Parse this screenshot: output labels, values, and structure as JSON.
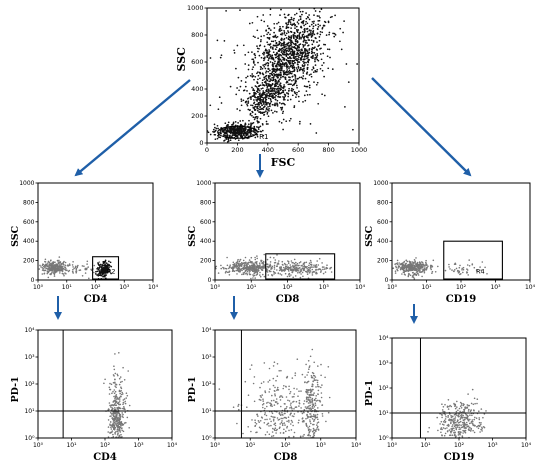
{
  "colors": {
    "arrow": "#1f5fa8",
    "dots_dark": "#111111",
    "dots_gray": "#777777",
    "axis": "#000000"
  },
  "icons": {
    "arrow": "arrow-down-icon"
  },
  "chart_data": [
    {
      "id": "top",
      "type": "scatter",
      "xlabel": "FSC",
      "ylabel": "SSC",
      "x_ticks": [
        "0",
        "200",
        "400",
        "600",
        "800",
        "1000"
      ],
      "y_ticks": [
        "0",
        "200",
        "400",
        "600",
        "800",
        "1000"
      ],
      "xlim": [
        0,
        1000
      ],
      "ylim": [
        0,
        1000
      ],
      "xscale": "linear",
      "gate": {
        "label": "R1",
        "shape": "ellipse",
        "center": [
          200,
          80
        ],
        "radius": [
          130,
          45
        ]
      },
      "clusters": [
        {
          "n": 1100,
          "mx": 540,
          "my": 650,
          "sx": 120,
          "sy": 170,
          "rho": 0.45,
          "tone": "dark"
        },
        {
          "n": 320,
          "mx": 380,
          "my": 330,
          "sx": 70,
          "sy": 80,
          "rho": 0.3,
          "tone": "dark"
        },
        {
          "n": 420,
          "mx": 200,
          "my": 85,
          "sx": 70,
          "sy": 28,
          "rho": 0.2,
          "tone": "dark"
        },
        {
          "n": 160,
          "mx": 450,
          "my": 500,
          "sx": 300,
          "sy": 300,
          "rho": 0.0,
          "tone": "dark"
        }
      ]
    },
    {
      "id": "mid-cd4",
      "type": "scatter",
      "xlabel": "CD4",
      "ylabel": "SSC",
      "x_ticks": [
        "10⁰",
        "10¹",
        "10²",
        "10³",
        "10⁴"
      ],
      "y_ticks": [
        "0",
        "200",
        "400",
        "600",
        "800",
        "1000"
      ],
      "xlim": [
        0,
        4
      ],
      "ylim": [
        0,
        1000
      ],
      "xscale": "log",
      "gate": {
        "label": "R2",
        "shape": "rect",
        "x": [
          1.9,
          2.8
        ],
        "y": [
          10,
          240
        ]
      },
      "clusters": [
        {
          "n": 260,
          "mx": 0.55,
          "my": 130,
          "sx": 0.22,
          "sy": 35,
          "rho": 0.0,
          "tone": "gray"
        },
        {
          "n": 180,
          "mx": 2.3,
          "my": 105,
          "sx": 0.12,
          "sy": 38,
          "rho": 0.3,
          "tone": "dark"
        },
        {
          "n": 60,
          "mx": 1.3,
          "my": 120,
          "sx": 0.45,
          "sy": 40,
          "rho": 0.0,
          "tone": "gray"
        }
      ]
    },
    {
      "id": "mid-cd8",
      "type": "scatter",
      "xlabel": "CD8",
      "ylabel": "SSC",
      "x_ticks": [
        "10⁰",
        "10¹",
        "10²",
        "10³",
        "10⁴"
      ],
      "y_ticks": [
        "0",
        "200",
        "400",
        "600",
        "800",
        "1000"
      ],
      "xlim": [
        0,
        4
      ],
      "ylim": [
        0,
        1000
      ],
      "xscale": "log",
      "gate": {
        "label": "",
        "shape": "rect",
        "x": [
          1.4,
          3.3
        ],
        "y": [
          10,
          270
        ]
      },
      "clusters": [
        {
          "n": 380,
          "mx": 0.95,
          "my": 130,
          "sx": 0.38,
          "sy": 40,
          "rho": 0.0,
          "tone": "gray"
        },
        {
          "n": 240,
          "mx": 2.3,
          "my": 120,
          "sx": 0.42,
          "sy": 38,
          "rho": 0.0,
          "tone": "gray"
        }
      ]
    },
    {
      "id": "mid-cd19",
      "type": "scatter",
      "xlabel": "CD19",
      "ylabel": "SSC",
      "x_ticks": [
        "10⁰",
        "10¹",
        "10²",
        "10³",
        "10⁴"
      ],
      "y_ticks": [
        "0",
        "200",
        "400",
        "600",
        "800",
        "1000"
      ],
      "xlim": [
        0,
        4
      ],
      "ylim": [
        0,
        1000
      ],
      "xscale": "log",
      "gate": {
        "label": "R4",
        "shape": "rect",
        "x": [
          1.5,
          3.2
        ],
        "y": [
          10,
          400
        ]
      },
      "clusters": [
        {
          "n": 340,
          "mx": 0.6,
          "my": 130,
          "sx": 0.25,
          "sy": 35,
          "rho": 0.0,
          "tone": "gray"
        },
        {
          "n": 50,
          "mx": 2.05,
          "my": 120,
          "sx": 0.35,
          "sy": 35,
          "rho": 0.0,
          "tone": "gray"
        }
      ]
    },
    {
      "id": "bot-cd4",
      "type": "scatter",
      "xlabel": "CD4",
      "ylabel": "PD-1",
      "x_ticks": [
        "10⁰",
        "10¹",
        "10²",
        "10³",
        "10⁴"
      ],
      "y_ticks": [
        "10⁰",
        "10¹",
        "10²",
        "10³",
        "10⁴"
      ],
      "xlim": [
        0,
        4
      ],
      "ylim": [
        0,
        4
      ],
      "xscale": "log",
      "yscale": "log",
      "quadrant": {
        "x": 0.75,
        "y": 1.0
      },
      "clusters": [
        {
          "n": 320,
          "mx": 2.35,
          "my": 0.75,
          "sx": 0.12,
          "sy": 0.5,
          "rho": 0.0,
          "tone": "gray"
        },
        {
          "n": 40,
          "mx": 2.35,
          "my": 1.9,
          "sx": 0.14,
          "sy": 0.45,
          "rho": 0.0,
          "tone": "gray"
        }
      ]
    },
    {
      "id": "bot-cd8",
      "type": "scatter",
      "xlabel": "CD8",
      "ylabel": "PD-1",
      "x_ticks": [
        "10⁰",
        "10¹",
        "10²",
        "10³",
        "10⁴"
      ],
      "y_ticks": [
        "10⁰",
        "10¹",
        "10²",
        "10³",
        "10⁴"
      ],
      "xlim": [
        0,
        4
      ],
      "ylim": [
        0,
        4
      ],
      "xscale": "log",
      "yscale": "log",
      "quadrant": {
        "x": 0.75,
        "y": 1.0
      },
      "clusters": [
        {
          "n": 260,
          "mx": 1.9,
          "my": 0.8,
          "sx": 0.5,
          "sy": 0.55,
          "rho": 0.0,
          "tone": "gray"
        },
        {
          "n": 220,
          "mx": 2.75,
          "my": 1.1,
          "sx": 0.12,
          "sy": 0.75,
          "rho": 0.0,
          "tone": "gray"
        },
        {
          "n": 60,
          "mx": 1.9,
          "my": 2.1,
          "sx": 0.6,
          "sy": 0.45,
          "rho": 0.0,
          "tone": "gray"
        }
      ]
    },
    {
      "id": "bot-cd19",
      "type": "scatter",
      "xlabel": "CD19",
      "ylabel": "PD-1",
      "x_ticks": [
        "10⁰",
        "10¹",
        "10²",
        "10³",
        "10⁴"
      ],
      "y_ticks": [
        "10⁰",
        "10¹",
        "10²",
        "10³",
        "10⁴"
      ],
      "xlim": [
        0,
        4
      ],
      "ylim": [
        0,
        4
      ],
      "xscale": "log",
      "yscale": "log",
      "quadrant": {
        "x": 0.85,
        "y": 1.0
      },
      "clusters": [
        {
          "n": 300,
          "mx": 2.05,
          "my": 0.65,
          "sx": 0.32,
          "sy": 0.38,
          "rho": 0.0,
          "tone": "gray"
        },
        {
          "n": 30,
          "mx": 2.1,
          "my": 1.25,
          "sx": 0.3,
          "sy": 0.15,
          "rho": 0.0,
          "tone": "gray"
        }
      ]
    }
  ]
}
